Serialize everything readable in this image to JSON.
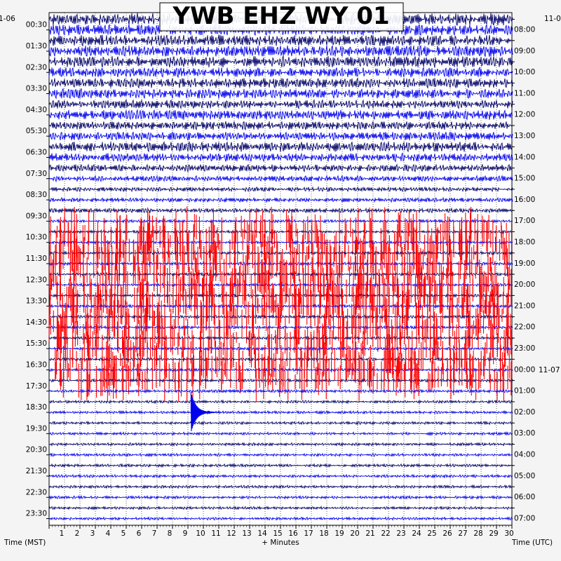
{
  "title": "YWB EHZ WY 01",
  "date_left_partial": "1-06",
  "date_right_partial": "11-0",
  "date_right_next": "11-07",
  "xlabel": "+ Minutes",
  "ylabel_left": "Time (MST)",
  "ylabel_right": "Time (UTC)",
  "colors": {
    "trace_dark": "#000066",
    "trace_blue": "#0000ee",
    "event": "#ff0000",
    "grid": "#000000",
    "background": "#ffffff"
  },
  "chart_data": {
    "type": "line",
    "description_of_series": "helicorder seismogram, 48 half-hour trace lines",
    "xlim": [
      0,
      30
    ],
    "x_ticks": [
      "1",
      "2",
      "3",
      "4",
      "5",
      "6",
      "7",
      "8",
      "9",
      "10",
      "11",
      "12",
      "13",
      "14",
      "15",
      "16",
      "17",
      "18",
      "19",
      "20",
      "21",
      "22",
      "23",
      "24",
      "25",
      "26",
      "27",
      "28",
      "29",
      "30"
    ],
    "left_ticks": [
      "00:30",
      "01:30",
      "02:30",
      "03:30",
      "04:30",
      "05:30",
      "06:30",
      "07:30",
      "08:30",
      "09:30",
      "10:30",
      "11:30",
      "12:30",
      "13:30",
      "14:30",
      "15:30",
      "16:30",
      "17:30",
      "18:30",
      "19:30",
      "20:30",
      "21:30",
      "22:30",
      "23:30"
    ],
    "right_ticks": [
      "08:00",
      "09:00",
      "10:00",
      "11:00",
      "12:00",
      "13:00",
      "14:00",
      "15:00",
      "16:00",
      "17:00",
      "18:00",
      "19:00",
      "20:00",
      "21:00",
      "22:00",
      "23:00",
      "00:00",
      "01:00",
      "02:00",
      "03:00",
      "04:00",
      "05:00",
      "06:00",
      "07:00"
    ],
    "line_count": 48,
    "line_noise_level": [
      9,
      8,
      8,
      8,
      8,
      7,
      7,
      7,
      6,
      7,
      6,
      6,
      7,
      6,
      5,
      4,
      3,
      3,
      3,
      2,
      2,
      2,
      2,
      2,
      2,
      2,
      2,
      2,
      2,
      2,
      2,
      2,
      2,
      2,
      2,
      2,
      2,
      2,
      2,
      2,
      2,
      2,
      2,
      2,
      2,
      2,
      2,
      2
    ],
    "red_line_range": [
      20,
      34
    ],
    "red_spike_rate_per_minute": 4,
    "large_event": {
      "line": 37,
      "minute": 9.2,
      "amplitude_lines": 1.2
    }
  }
}
